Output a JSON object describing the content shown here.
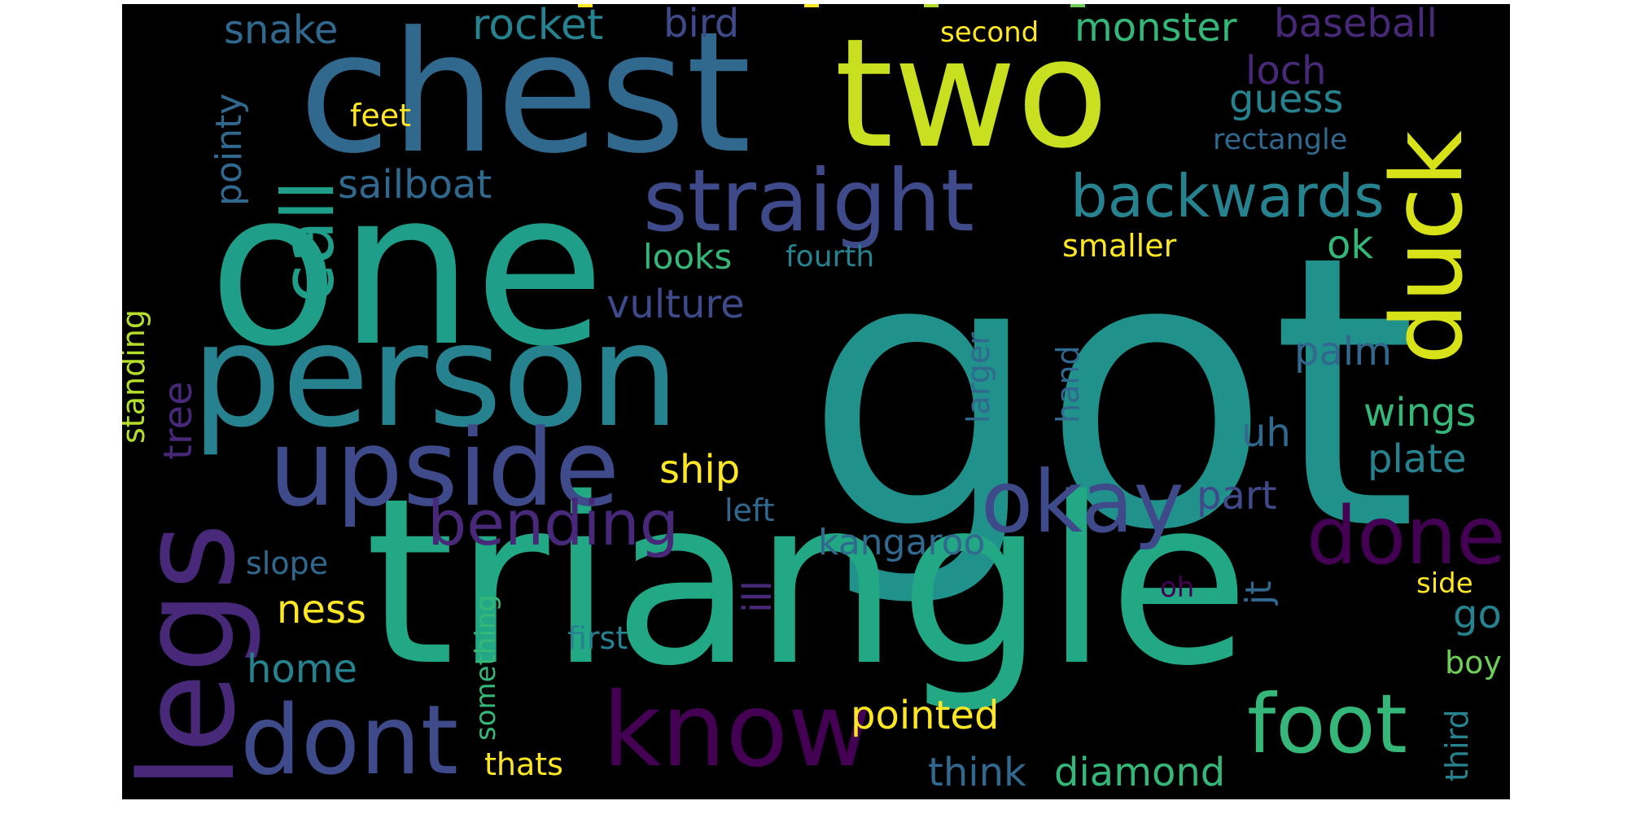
{
  "colors": {
    "background": "#000000",
    "page": "#ffffff",
    "palette": [
      "#440154",
      "#482878",
      "#3e4a89",
      "#31688e",
      "#26828e",
      "#1f9e89",
      "#35b779",
      "#6ece58",
      "#b5de2b",
      "#fde725"
    ]
  },
  "words": {
    "got": "got",
    "triangle": "triangle",
    "one": "one",
    "chest": "chest",
    "two": "two",
    "person": "person",
    "legs": "legs",
    "upside": "upside",
    "dont": "dont",
    "know": "know",
    "straight": "straight",
    "foot": "foot",
    "duck": "duck",
    "call": "call",
    "okay": "okay",
    "done": "done",
    "backwards": "backwards",
    "bending": "bending",
    "rocket": "rocket",
    "bird": "bird",
    "snake": "snake",
    "monster": "monster",
    "baseball": "baseball",
    "second": "second",
    "loch": "loch",
    "guess": "guess",
    "rectangle": "rectangle",
    "feet": "feet",
    "pointy": "pointy",
    "sailboat": "sailboat",
    "looks": "looks",
    "fourth": "fourth",
    "smaller": "smaller",
    "ok": "ok",
    "vulture": "vulture",
    "palm": "palm",
    "standing": "standing",
    "tree": "tree",
    "larger": "larger",
    "hand": "hand",
    "wings": "wings",
    "uh": "uh",
    "plate": "plate",
    "ship": "ship",
    "part": "part",
    "left": "left",
    "kangaroo": "kangaroo",
    "ill": "ill",
    "slope": "slope",
    "something": "something",
    "oh": "oh",
    "jt": "jt",
    "side": "side",
    "ness": "ness",
    "go": "go",
    "first": "first",
    "boy": "boy",
    "home": "home",
    "pointed": "pointed",
    "third": "third",
    "think": "think",
    "diamond": "diamond",
    "thats": "thats"
  }
}
